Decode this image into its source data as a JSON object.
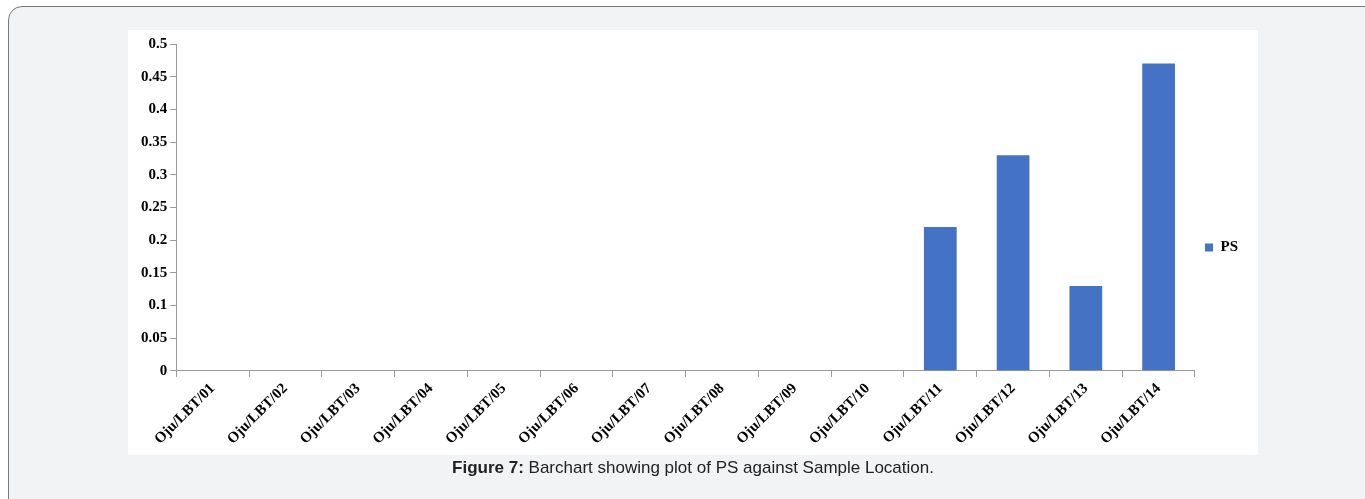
{
  "chart_data": {
    "type": "bar",
    "categories": [
      "Oju/LBT/01",
      "Oju/LBT/02",
      "Oju/LBT/03",
      "Oju/LBT/04",
      "Oju/LBT/05",
      "Oju/LBT/06",
      "Oju/LBT/07",
      "Oju/LBT/08",
      "Oju/LBT/09",
      "Oju/LBT/10",
      "Oju/LBT/11",
      "Oju/LBT/12",
      "Oju/LBT/13",
      "Oju/LBT/14"
    ],
    "series": [
      {
        "name": "PS",
        "color": "#4472c4",
        "values": [
          0,
          0,
          0,
          0,
          0,
          0,
          0,
          0,
          0,
          0,
          0.22,
          0.33,
          0.13,
          0.47
        ]
      }
    ],
    "ylim": [
      0,
      0.5
    ],
    "yticks": [
      0,
      0.05,
      0.1,
      0.15,
      0.2,
      0.25,
      0.3,
      0.35,
      0.4,
      0.45,
      0.5
    ],
    "grid": false,
    "legend": "right",
    "annotations": [
      "Figure 7: Barchart showing plot of PS against Sample Location."
    ]
  }
}
